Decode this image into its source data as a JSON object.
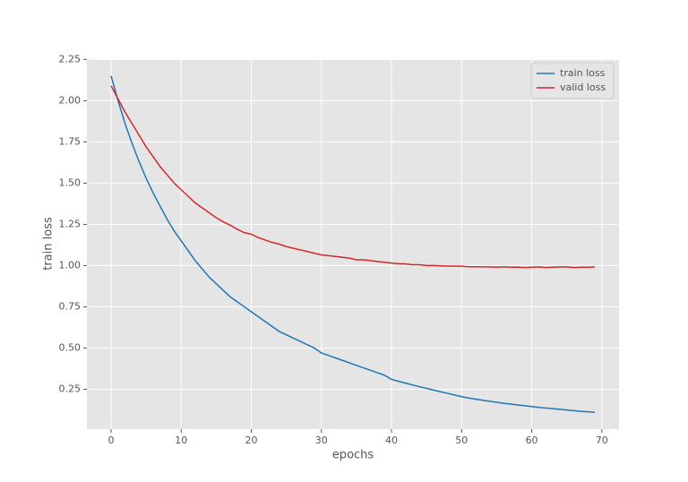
{
  "chart_data": {
    "type": "line",
    "xlabel": "epochs",
    "ylabel": "train loss",
    "x": [
      0,
      1,
      2,
      3,
      4,
      5,
      6,
      7,
      8,
      9,
      10,
      11,
      12,
      13,
      14,
      15,
      16,
      17,
      18,
      19,
      20,
      21,
      22,
      23,
      24,
      25,
      26,
      27,
      28,
      29,
      30,
      31,
      32,
      33,
      34,
      35,
      36,
      37,
      38,
      39,
      40,
      41,
      42,
      43,
      44,
      45,
      46,
      47,
      48,
      49,
      50,
      51,
      52,
      53,
      54,
      55,
      56,
      57,
      58,
      59,
      60,
      61,
      62,
      63,
      64,
      65,
      66,
      67,
      68,
      69
    ],
    "series": [
      {
        "name": "train loss",
        "color": "#1f77b4",
        "values": [
          2.15,
          2.0,
          1.86,
          1.74,
          1.63,
          1.53,
          1.44,
          1.36,
          1.28,
          1.21,
          1.15,
          1.09,
          1.03,
          0.98,
          0.93,
          0.89,
          0.85,
          0.81,
          0.78,
          0.75,
          0.72,
          0.69,
          0.66,
          0.63,
          0.6,
          0.58,
          0.56,
          0.54,
          0.52,
          0.5,
          0.47,
          0.455,
          0.44,
          0.425,
          0.41,
          0.395,
          0.38,
          0.365,
          0.35,
          0.335,
          0.31,
          0.298,
          0.287,
          0.276,
          0.265,
          0.255,
          0.245,
          0.235,
          0.225,
          0.215,
          0.205,
          0.197,
          0.19,
          0.183,
          0.177,
          0.171,
          0.165,
          0.16,
          0.155,
          0.15,
          0.145,
          0.14,
          0.136,
          0.132,
          0.128,
          0.124,
          0.12,
          0.116,
          0.113,
          0.11
        ]
      },
      {
        "name": "valid loss",
        "color": "#d62728",
        "values": [
          2.09,
          2.01,
          1.93,
          1.86,
          1.79,
          1.72,
          1.66,
          1.6,
          1.55,
          1.5,
          1.46,
          1.42,
          1.38,
          1.35,
          1.32,
          1.29,
          1.265,
          1.245,
          1.22,
          1.2,
          1.19,
          1.17,
          1.155,
          1.14,
          1.13,
          1.115,
          1.105,
          1.095,
          1.085,
          1.075,
          1.065,
          1.06,
          1.055,
          1.05,
          1.045,
          1.035,
          1.035,
          1.03,
          1.025,
          1.02,
          1.015,
          1.012,
          1.01,
          1.005,
          1.005,
          1.0,
          1.0,
          0.998,
          0.997,
          0.997,
          0.996,
          0.993,
          0.993,
          0.992,
          0.992,
          0.99,
          0.993,
          0.99,
          0.991,
          0.988,
          0.99,
          0.992,
          0.988,
          0.99,
          0.992,
          0.992,
          0.988,
          0.99,
          0.99,
          0.992
        ]
      }
    ],
    "xlim": [
      -3.45,
      72.45
    ],
    "xticks": [
      0,
      10,
      20,
      30,
      40,
      50,
      60,
      70
    ],
    "ylim": [
      0.008,
      2.252
    ],
    "yticks": [
      0.25,
      {
        "value": 0.5,
        "label": "0.50"
      },
      0.75,
      {
        "value": 1,
        "label": "1.00"
      },
      1.25,
      {
        "value": 1.5,
        "label": "1.50"
      },
      1.75,
      {
        "value": 2,
        "label": "2.00"
      },
      2.25
    ],
    "grid": true,
    "legend": "upper right"
  }
}
